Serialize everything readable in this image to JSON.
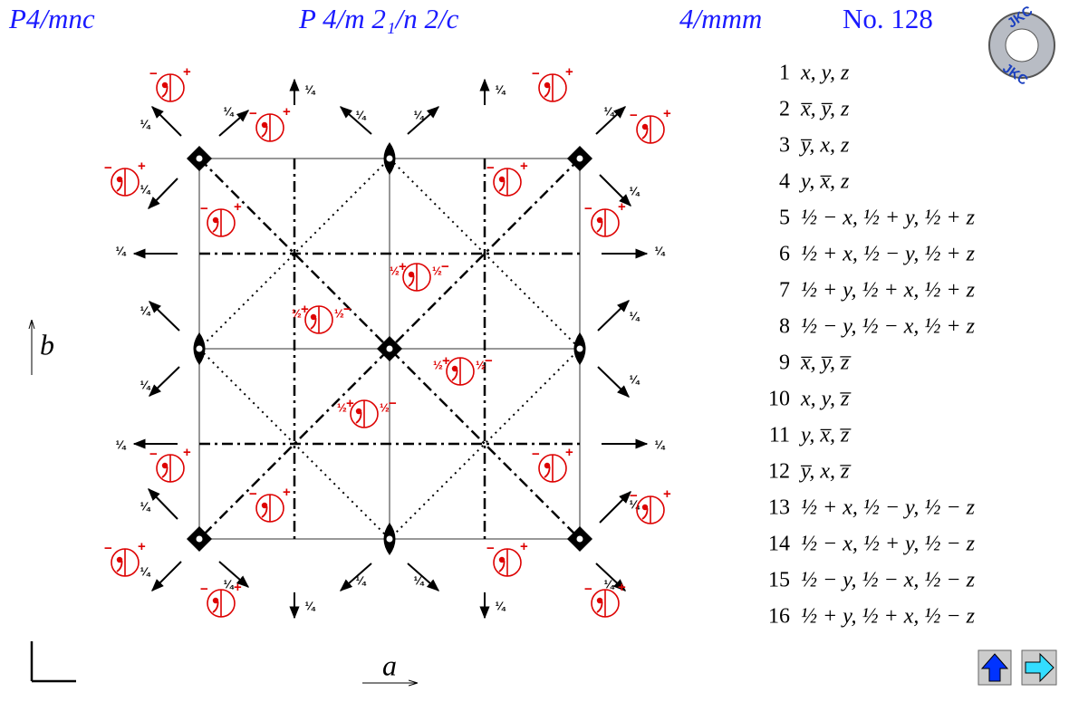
{
  "header": {
    "symbol": "P4/mnc",
    "full_symbol": "P 4/m 2₁/n 2/c",
    "point_group": "4/mmm",
    "number": "No. 128"
  },
  "logo": "JKC",
  "axes": {
    "a": "a",
    "b": "b"
  },
  "diagram": {
    "quarter": "¼",
    "half": "½",
    "plus": "+",
    "minus": "−"
  },
  "positions": [
    {
      "index": "1",
      "coordinates": "x, y, z"
    },
    {
      "index": "2",
      "coordinates": "x̅, y̅, z"
    },
    {
      "index": "3",
      "coordinates": "y̅, x, z"
    },
    {
      "index": "4",
      "coordinates": "y, x̅, z"
    },
    {
      "index": "5",
      "coordinates": "½ − x, ½ + y, ½ + z"
    },
    {
      "index": "6",
      "coordinates": "½ + x, ½ − y, ½ + z"
    },
    {
      "index": "7",
      "coordinates": "½ + y, ½ + x, ½ + z"
    },
    {
      "index": "8",
      "coordinates": "½ − y, ½ − x, ½ + z"
    },
    {
      "index": "9",
      "coordinates": "x̅, y̅, z̅"
    },
    {
      "index": "10",
      "coordinates": "x, y, z̅"
    },
    {
      "index": "11",
      "coordinates": "y, x̅, z̅"
    },
    {
      "index": "12",
      "coordinates": "y̅, x, z̅"
    },
    {
      "index": "13",
      "coordinates": "½ + x, ½ − y, ½ − z"
    },
    {
      "index": "14",
      "coordinates": "½ − x, ½ + y, ½ − z"
    },
    {
      "index": "15",
      "coordinates": "½ − y, ½ − x, ½ − z"
    },
    {
      "index": "16",
      "coordinates": "½ + y, ½ + x, ½ − z"
    }
  ]
}
